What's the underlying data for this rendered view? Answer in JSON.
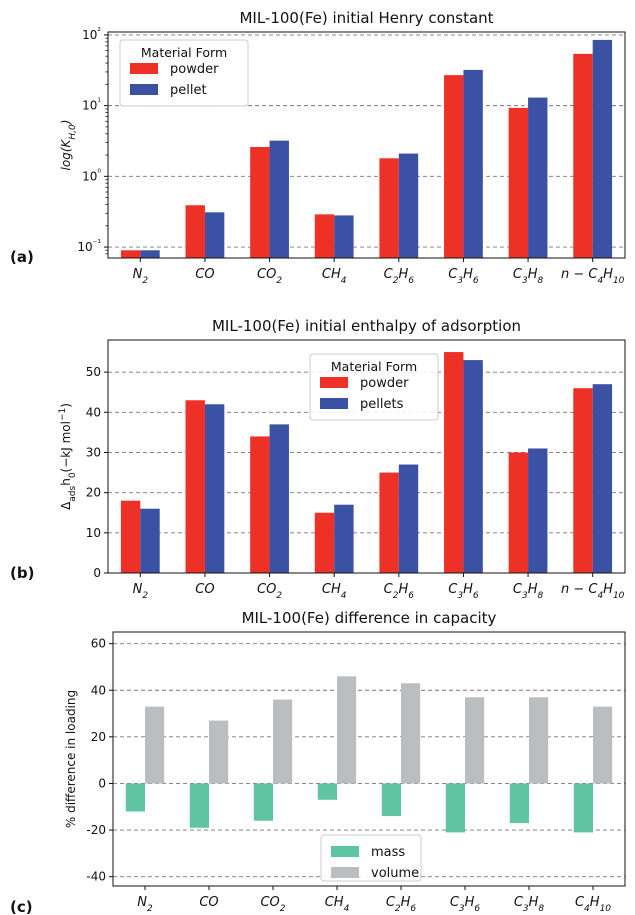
{
  "chart_data": [
    {
      "type": "bar",
      "panel_label": "(a)",
      "title": "MIL-100(Fe) initial Henry constant",
      "ylabel": "log(K_{H,0})",
      "yscale": "log",
      "ylim": [
        0.07,
        110
      ],
      "yticks": [
        0.1,
        1,
        10,
        100
      ],
      "ytick_labels": [
        "10⁻¹",
        "10⁰",
        "10¹",
        "10²"
      ],
      "grid": "y-dashed",
      "categories": [
        "N2",
        "CO",
        "CO2",
        "CH4",
        "C2H6",
        "C3H6",
        "C3H8",
        "n-C4H10"
      ],
      "legend": {
        "title": "Material Form",
        "placement": "upper-left"
      },
      "series": [
        {
          "name": "powder",
          "color": "#ee3127",
          "values": [
            0.09,
            0.39,
            2.6,
            0.29,
            1.8,
            27,
            9.3,
            54
          ]
        },
        {
          "name": "pellet",
          "color": "#3b51a3",
          "values": [
            0.09,
            0.31,
            3.2,
            0.28,
            2.1,
            32,
            13,
            85
          ]
        }
      ]
    },
    {
      "type": "bar",
      "panel_label": "(b)",
      "title": "MIL-100(Fe) initial enthalpy of adsorption",
      "ylabel": "Δ_ads h_0 (−kJ mol⁻¹)",
      "yscale": "linear",
      "ylim": [
        0,
        58
      ],
      "yticks": [
        0,
        10,
        20,
        30,
        40,
        50
      ],
      "grid": "y-dashed",
      "categories": [
        "N2",
        "CO",
        "CO2",
        "CH4",
        "C2H6",
        "C3H6",
        "C3H8",
        "n-C4H10"
      ],
      "legend": {
        "title": "Material Form",
        "placement": "upper-center"
      },
      "series": [
        {
          "name": "powder",
          "color": "#ee3127",
          "values": [
            18,
            43,
            34,
            15,
            25,
            55,
            30,
            46
          ]
        },
        {
          "name": "pellets",
          "color": "#3b51a3",
          "values": [
            16,
            42,
            37,
            17,
            27,
            53,
            31,
            47
          ]
        }
      ]
    },
    {
      "type": "bar",
      "panel_label": "(c)",
      "title": "MIL-100(Fe) difference in capacity",
      "ylabel": "% difference in loading",
      "yscale": "linear",
      "ylim": [
        -44,
        65
      ],
      "yticks": [
        -40,
        -20,
        0,
        20,
        40,
        60
      ],
      "grid": "y-dashed",
      "categories": [
        "N2",
        "CO",
        "CO2",
        "CH4",
        "C2H6",
        "C3H6",
        "C3H8",
        "C4H10"
      ],
      "legend": {
        "title": "",
        "placement": "lower-center"
      },
      "series": [
        {
          "name": "mass",
          "color": "#5ec4a2",
          "values": [
            -12,
            -19,
            -16,
            -7,
            -14,
            -21,
            -17,
            -21
          ]
        },
        {
          "name": "volume",
          "color": "#bbbec1",
          "values": [
            33,
            27,
            36,
            46,
            43,
            37,
            37,
            33
          ]
        }
      ]
    }
  ]
}
